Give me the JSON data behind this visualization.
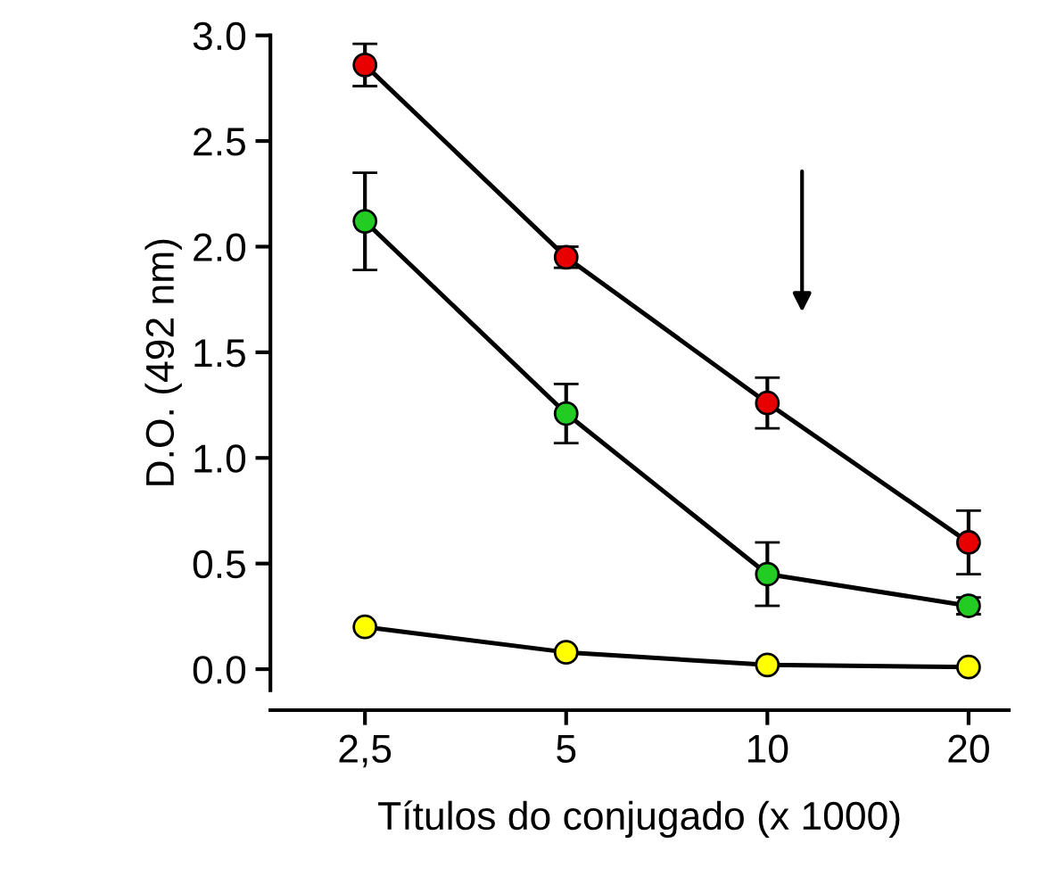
{
  "chart_data": {
    "type": "line",
    "xlabel": "Títulos do conjugado (x 1000)",
    "ylabel": "D.O. (492 nm)",
    "categories": [
      "2,5",
      "5",
      "10",
      "20"
    ],
    "ylim": [
      -0.1,
      3.0
    ],
    "yticks": [
      {
        "value": 0,
        "label": "0.0"
      },
      0.5,
      {
        "value": 1,
        "label": "1.0"
      },
      1.5,
      {
        "value": 2,
        "label": "2.0"
      },
      2.5,
      {
        "value": 3,
        "label": "3.0"
      }
    ],
    "grid": false,
    "marker": "circle",
    "line_style": "solid",
    "series": [
      {
        "color": "#e80000",
        "values": [
          2.86,
          1.95,
          1.26,
          0.6
        ],
        "errors": [
          0.1,
          0.05,
          0.12,
          0.15
        ]
      },
      {
        "color": "#22cc22",
        "values": [
          2.12,
          1.21,
          0.45,
          0.3
        ],
        "errors": [
          0.23,
          0.14,
          0.15,
          0.04
        ]
      },
      {
        "color": "#ffff00",
        "values": [
          0.2,
          0.08,
          0.02,
          0.01
        ],
        "errors": [
          null,
          null,
          null,
          null
        ]
      }
    ]
  }
}
